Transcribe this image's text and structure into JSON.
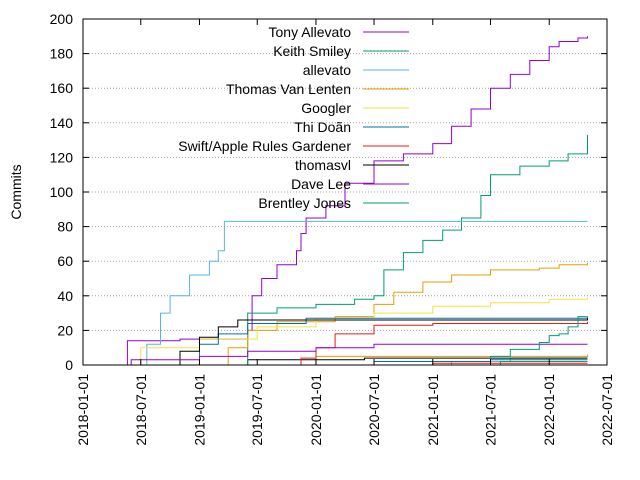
{
  "chart_data": {
    "type": "line",
    "title": "",
    "xlabel": "",
    "ylabel": "Commits",
    "ylim": [
      0,
      200
    ],
    "xlim": [
      "2018-01-01",
      "2022-07-01"
    ],
    "y_ticks": [
      0,
      20,
      40,
      60,
      80,
      100,
      120,
      140,
      160,
      180,
      200
    ],
    "x_ticks": [
      "2018-01-01",
      "2018-07-01",
      "2019-01-01",
      "2019-07-01",
      "2020-01-01",
      "2020-07-01",
      "2021-01-01",
      "2021-07-01",
      "2022-01-01",
      "2022-07-01"
    ],
    "grid": "horizontal dotted",
    "legend_position": "top-left inside",
    "series": [
      {
        "name": "Tony Allevato",
        "color": "#9400d3",
        "points": [
          [
            "2018-05-15",
            0
          ],
          [
            "2018-05-20",
            14
          ],
          [
            "2018-11-01",
            15
          ],
          [
            "2019-06-01",
            20
          ],
          [
            "2019-06-15",
            40
          ],
          [
            "2019-07-15",
            50
          ],
          [
            "2019-09-01",
            58
          ],
          [
            "2019-11-01",
            66
          ],
          [
            "2019-11-15",
            76
          ],
          [
            "2019-12-01",
            85
          ],
          [
            "2020-02-01",
            92
          ],
          [
            "2020-04-01",
            105
          ],
          [
            "2020-07-01",
            118
          ],
          [
            "2020-10-01",
            122
          ],
          [
            "2021-01-01",
            128
          ],
          [
            "2021-03-01",
            138
          ],
          [
            "2021-05-01",
            148
          ],
          [
            "2021-07-01",
            160
          ],
          [
            "2021-09-01",
            168
          ],
          [
            "2021-11-01",
            176
          ],
          [
            "2022-01-01",
            184
          ],
          [
            "2022-02-01",
            187
          ],
          [
            "2022-04-01",
            189
          ],
          [
            "2022-05-01",
            190
          ]
        ]
      },
      {
        "name": "Keith Smiley",
        "color": "#009e73",
        "points": [
          [
            "2019-05-01",
            0
          ],
          [
            "2019-06-01",
            30
          ],
          [
            "2019-09-01",
            33
          ],
          [
            "2020-01-01",
            35
          ],
          [
            "2020-05-01",
            38
          ],
          [
            "2020-07-01",
            40
          ],
          [
            "2020-08-01",
            55
          ],
          [
            "2020-10-01",
            65
          ],
          [
            "2020-12-01",
            72
          ],
          [
            "2021-02-01",
            78
          ],
          [
            "2021-04-01",
            85
          ],
          [
            "2021-06-01",
            98
          ],
          [
            "2021-07-01",
            110
          ],
          [
            "2021-10-01",
            115
          ],
          [
            "2022-01-01",
            118
          ],
          [
            "2022-03-01",
            122
          ],
          [
            "2022-05-01",
            133
          ]
        ]
      },
      {
        "name": "allevato",
        "color": "#56b4e9",
        "points": [
          [
            "2018-07-01",
            0
          ],
          [
            "2018-07-20",
            12
          ],
          [
            "2018-09-01",
            30
          ],
          [
            "2018-10-01",
            40
          ],
          [
            "2018-12-01",
            52
          ],
          [
            "2019-02-01",
            60
          ],
          [
            "2019-03-01",
            66
          ],
          [
            "2019-03-20",
            83
          ],
          [
            "2022-05-01",
            83
          ]
        ]
      },
      {
        "name": "Thomas Van Lenten",
        "color": "#e69f00",
        "points": [
          [
            "2019-03-01",
            0
          ],
          [
            "2019-04-01",
            10
          ],
          [
            "2019-06-01",
            20
          ],
          [
            "2019-09-01",
            25
          ],
          [
            "2020-03-01",
            28
          ],
          [
            "2020-07-01",
            35
          ],
          [
            "2020-09-01",
            42
          ],
          [
            "2020-12-01",
            48
          ],
          [
            "2021-03-01",
            52
          ],
          [
            "2021-07-01",
            55
          ],
          [
            "2021-12-01",
            56
          ],
          [
            "2022-02-01",
            58
          ],
          [
            "2022-05-01",
            59
          ]
        ]
      },
      {
        "name": "Googler",
        "color": "#f0e442",
        "points": [
          [
            "2018-06-01",
            0
          ],
          [
            "2018-07-01",
            10
          ],
          [
            "2019-01-01",
            15
          ],
          [
            "2019-07-01",
            22
          ],
          [
            "2020-01-01",
            27
          ],
          [
            "2020-07-01",
            30
          ],
          [
            "2021-01-01",
            34
          ],
          [
            "2021-07-01",
            36
          ],
          [
            "2022-01-01",
            38
          ],
          [
            "2022-05-01",
            39
          ]
        ]
      },
      {
        "name": "Thi Doãn",
        "color": "#0072b2",
        "points": [
          [
            "2018-12-01",
            0
          ],
          [
            "2019-01-01",
            12
          ],
          [
            "2019-03-01",
            18
          ],
          [
            "2019-06-01",
            24
          ],
          [
            "2019-12-01",
            27
          ],
          [
            "2022-05-01",
            28
          ]
        ]
      },
      {
        "name": "Swift/Apple Rules Gardener",
        "color": "#e51e10",
        "points": [
          [
            "2019-11-01",
            0
          ],
          [
            "2019-11-15",
            4
          ],
          [
            "2020-01-01",
            10
          ],
          [
            "2020-03-01",
            18
          ],
          [
            "2020-07-01",
            23
          ],
          [
            "2021-01-01",
            24
          ],
          [
            "2022-05-01",
            25
          ]
        ]
      },
      {
        "name": "thomasvl",
        "color": "#000000",
        "points": [
          [
            "2018-10-01",
            0
          ],
          [
            "2018-11-01",
            8
          ],
          [
            "2019-01-01",
            16
          ],
          [
            "2019-03-01",
            22
          ],
          [
            "2019-05-01",
            26
          ],
          [
            "2022-05-01",
            27
          ]
        ]
      },
      {
        "name": "Dave Lee",
        "color": "#9400d3",
        "points": [
          [
            "2018-05-01",
            0
          ],
          [
            "2018-06-01",
            3
          ],
          [
            "2019-01-01",
            5
          ],
          [
            "2019-06-01",
            8
          ],
          [
            "2020-01-01",
            10
          ],
          [
            "2020-07-01",
            12
          ],
          [
            "2021-06-01",
            12
          ],
          [
            "2022-05-01",
            12
          ]
        ]
      },
      {
        "name": "Brentley Jones",
        "color": "#009e73",
        "points": [
          [
            "2021-06-01",
            0
          ],
          [
            "2021-07-01",
            5
          ],
          [
            "2021-09-01",
            9
          ],
          [
            "2021-12-01",
            13
          ],
          [
            "2022-01-01",
            17
          ],
          [
            "2022-02-01",
            18
          ],
          [
            "2022-03-01",
            22
          ],
          [
            "2022-04-01",
            28
          ],
          [
            "2022-05-01",
            28
          ]
        ]
      }
    ],
    "extra_low_series": [
      {
        "color": "#56b4e9",
        "points": [
          [
            "2020-09-01",
            0
          ],
          [
            "2021-03-01",
            2
          ],
          [
            "2021-09-01",
            4
          ],
          [
            "2022-05-01",
            4
          ]
        ]
      },
      {
        "color": "#e69f00",
        "points": [
          [
            "2019-09-01",
            0
          ],
          [
            "2020-01-01",
            5
          ],
          [
            "2022-05-01",
            6
          ]
        ]
      },
      {
        "color": "#000000",
        "points": [
          [
            "2019-01-01",
            0
          ],
          [
            "2019-06-01",
            3
          ],
          [
            "2020-06-01",
            4
          ],
          [
            "2022-05-01",
            4
          ]
        ]
      },
      {
        "color": "#0072b2",
        "points": [
          [
            "2019-07-01",
            0
          ],
          [
            "2020-07-01",
            2
          ],
          [
            "2021-07-01",
            3
          ],
          [
            "2022-05-01",
            3
          ]
        ]
      },
      {
        "color": "#009e73",
        "points": [
          [
            "2021-01-01",
            0
          ],
          [
            "2021-08-01",
            2
          ],
          [
            "2022-05-01",
            2
          ]
        ]
      },
      {
        "color": "#e51e10",
        "points": [
          [
            "2020-06-01",
            0
          ],
          [
            "2021-01-01",
            1
          ],
          [
            "2022-05-01",
            1
          ]
        ]
      }
    ]
  }
}
